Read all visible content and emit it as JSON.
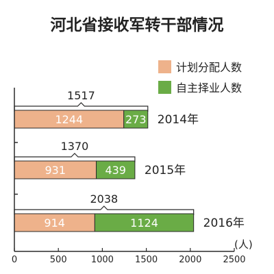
{
  "chart_data": {
    "type": "bar",
    "orientation": "horizontal",
    "stacked": true,
    "title": "河北省接收军转干部情况",
    "xlabel": "",
    "ylabel": "",
    "unit_label": "(人)",
    "xlim": [
      0,
      2500
    ],
    "x_ticks": [
      "0",
      "500",
      "1000",
      "1500",
      "2000",
      "2500"
    ],
    "grid": false,
    "legend_position": "top-right",
    "categories": [
      "2014年",
      "2015年",
      "2016年"
    ],
    "series": [
      {
        "name": "计划分配人数",
        "color": "#eeb28b",
        "values": [
          1244,
          931,
          914
        ]
      },
      {
        "name": "自主择业人数",
        "color": "#6aac46",
        "values": [
          273,
          439,
          1124
        ]
      }
    ],
    "totals": [
      1517,
      1370,
      2038
    ]
  }
}
